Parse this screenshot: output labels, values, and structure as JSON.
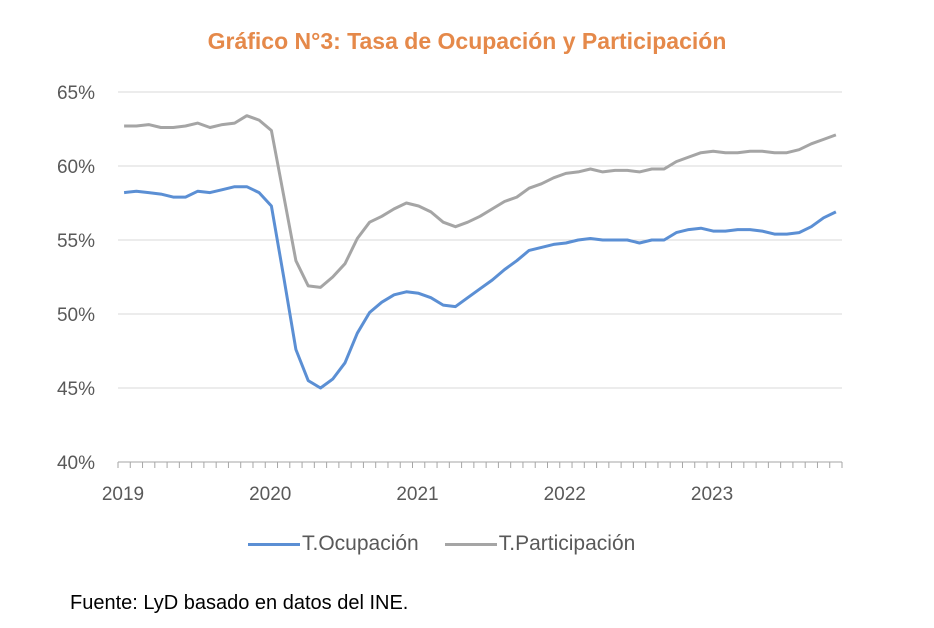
{
  "chart_data": {
    "type": "line",
    "title": "Gráfico N°3: Tasa de Ocupación y Participación",
    "xlabel": "",
    "ylabel": "",
    "ylim": [
      40,
      65
    ],
    "yticks": [
      "40%",
      "45%",
      "50%",
      "55%",
      "60%",
      "65%"
    ],
    "ytick_values": [
      40,
      45,
      50,
      55,
      60,
      65
    ],
    "xtick_labels": [
      "2019",
      "2020",
      "2021",
      "2022",
      "2023"
    ],
    "xtick_index": [
      0,
      12,
      24,
      36,
      48
    ],
    "n_points": 59,
    "grid": true,
    "legend": "bottom",
    "series": [
      {
        "name": "T.Ocupación",
        "color": "#5B8FD4",
        "values": [
          58.2,
          58.3,
          58.2,
          58.1,
          57.9,
          57.9,
          58.3,
          58.2,
          58.4,
          58.6,
          58.6,
          58.2,
          57.3,
          52.5,
          47.6,
          45.5,
          45.0,
          45.6,
          46.7,
          48.7,
          50.1,
          50.8,
          51.3,
          51.5,
          51.4,
          51.1,
          50.6,
          50.5,
          51.1,
          51.7,
          52.3,
          53.0,
          53.6,
          54.3,
          54.5,
          54.7,
          54.8,
          55.0,
          55.1,
          55.0,
          55.0,
          55.0,
          54.8,
          55.0,
          55.0,
          55.5,
          55.7,
          55.8,
          55.6,
          55.6,
          55.7,
          55.7,
          55.6,
          55.4,
          55.4,
          55.5,
          55.9,
          56.5,
          56.9
        ]
      },
      {
        "name": "T.Participación",
        "color": "#A5A5A5",
        "values": [
          62.7,
          62.7,
          62.8,
          62.6,
          62.6,
          62.7,
          62.9,
          62.6,
          62.8,
          62.9,
          63.4,
          63.1,
          62.4,
          58.0,
          53.6,
          51.9,
          51.8,
          52.5,
          53.4,
          55.1,
          56.2,
          56.6,
          57.1,
          57.5,
          57.3,
          56.9,
          56.2,
          55.9,
          56.2,
          56.6,
          57.1,
          57.6,
          57.9,
          58.5,
          58.8,
          59.2,
          59.5,
          59.6,
          59.8,
          59.6,
          59.7,
          59.7,
          59.6,
          59.8,
          59.8,
          60.3,
          60.6,
          60.9,
          61.0,
          60.9,
          60.9,
          61.0,
          61.0,
          60.9,
          60.9,
          61.1,
          61.5,
          61.8,
          62.1
        ]
      }
    ]
  },
  "legend": {
    "items": [
      "T.Ocupación",
      "T.Participación"
    ]
  },
  "source": "Fuente: LyD basado en datos del INE."
}
